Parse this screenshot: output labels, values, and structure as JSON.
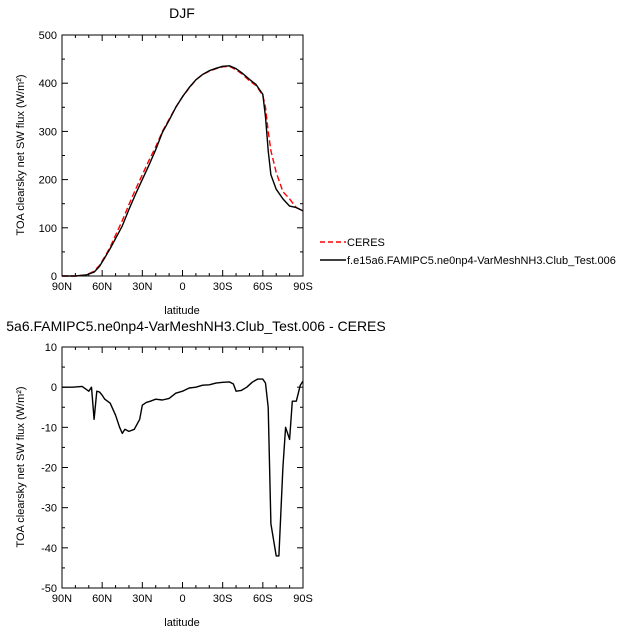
{
  "chart_data": [
    {
      "type": "line",
      "title": "DJF",
      "xlabel": "latitude",
      "ylabel": "TOA clearsky net SW flux (W/m²)",
      "xlim": [
        90,
        -90
      ],
      "ylim": [
        0,
        500
      ],
      "xticks": [
        "90N",
        "60N",
        "30N",
        "0",
        "30S",
        "60S",
        "90S"
      ],
      "yticks": [
        "0",
        "100",
        "200",
        "300",
        "400",
        "500"
      ],
      "legend_position": "right",
      "series": [
        {
          "name": "CERES",
          "color": "#ff0000",
          "dash": true,
          "x": [
            90,
            80,
            72,
            66,
            62,
            58,
            54,
            50,
            45,
            40,
            35,
            30,
            25,
            20,
            15,
            10,
            5,
            0,
            -5,
            -10,
            -15,
            -20,
            -25,
            -30,
            -35,
            -40,
            -45,
            -50,
            -55,
            -60,
            -62,
            -64,
            -66,
            -70,
            -75,
            -80,
            -85,
            -90
          ],
          "values": [
            0,
            0,
            2,
            10,
            22,
            40,
            60,
            85,
            115,
            148,
            180,
            210,
            240,
            268,
            300,
            325,
            350,
            372,
            390,
            407,
            418,
            425,
            430,
            434,
            435,
            428,
            418,
            405,
            395,
            375,
            350,
            300,
            260,
            215,
            175,
            160,
            142,
            135
          ]
        },
        {
          "name": "f.e15a6.FAMIPC5.ne0np4-VarMeshNH3.Club_Test.006",
          "color": "#000000",
          "dash": false,
          "x": [
            90,
            80,
            72,
            66,
            62,
            58,
            54,
            50,
            45,
            40,
            35,
            30,
            25,
            20,
            15,
            10,
            5,
            0,
            -5,
            -10,
            -15,
            -20,
            -25,
            -30,
            -35,
            -40,
            -45,
            -50,
            -55,
            -60,
            -62,
            -64,
            -66,
            -70,
            -75,
            -80,
            -85,
            -90
          ],
          "values": [
            0,
            0,
            2,
            8,
            20,
            38,
            57,
            78,
            104,
            138,
            170,
            200,
            230,
            262,
            298,
            323,
            350,
            372,
            391,
            407,
            418,
            426,
            431,
            435,
            436,
            430,
            420,
            408,
            397,
            377,
            330,
            260,
            210,
            180,
            160,
            145,
            142,
            135
          ]
        }
      ]
    },
    {
      "type": "line",
      "title": "5a6.FAMIPC5.ne0np4-VarMeshNH3.Club_Test.006 - CERES",
      "xlabel": "latitude",
      "ylabel": "TOA clearsky net SW flux (W/m²)",
      "xlim": [
        90,
        -90
      ],
      "ylim": [
        -50,
        10
      ],
      "xticks": [
        "90N",
        "60N",
        "30N",
        "0",
        "30S",
        "60S",
        "90S"
      ],
      "yticks": [
        "10",
        "0",
        "-10",
        "-20",
        "-30",
        "-40",
        "-50"
      ],
      "series": [
        {
          "color": "#000000",
          "x": [
            90,
            82,
            75,
            70,
            68,
            66,
            64,
            62,
            60,
            58,
            54,
            50,
            47,
            45,
            43,
            40,
            36,
            32,
            30,
            27,
            24,
            20,
            15,
            10,
            5,
            0,
            -5,
            -10,
            -15,
            -20,
            -25,
            -30,
            -35,
            -38,
            -40,
            -44,
            -48,
            -52,
            -56,
            -60,
            -62,
            -64,
            -66,
            -70,
            -72,
            -75,
            -77,
            -80,
            -82,
            -85,
            -88,
            -90
          ],
          "values": [
            0,
            0,
            0.2,
            -1,
            0,
            -8,
            -1,
            -1.2,
            -2,
            -3,
            -4,
            -7,
            -10,
            -11.5,
            -10.5,
            -11,
            -10.5,
            -8,
            -4.5,
            -3.8,
            -3.5,
            -3,
            -3.2,
            -2.8,
            -1.5,
            -1,
            -0.2,
            0,
            0.5,
            0.6,
            1,
            1.2,
            1.3,
            0.8,
            -1,
            -0.8,
            0,
            1.2,
            2,
            2,
            1,
            -5,
            -34,
            -42,
            -42,
            -20,
            -10,
            -13,
            -3.5,
            -3.5,
            0.5,
            1.5
          ]
        }
      ]
    }
  ]
}
